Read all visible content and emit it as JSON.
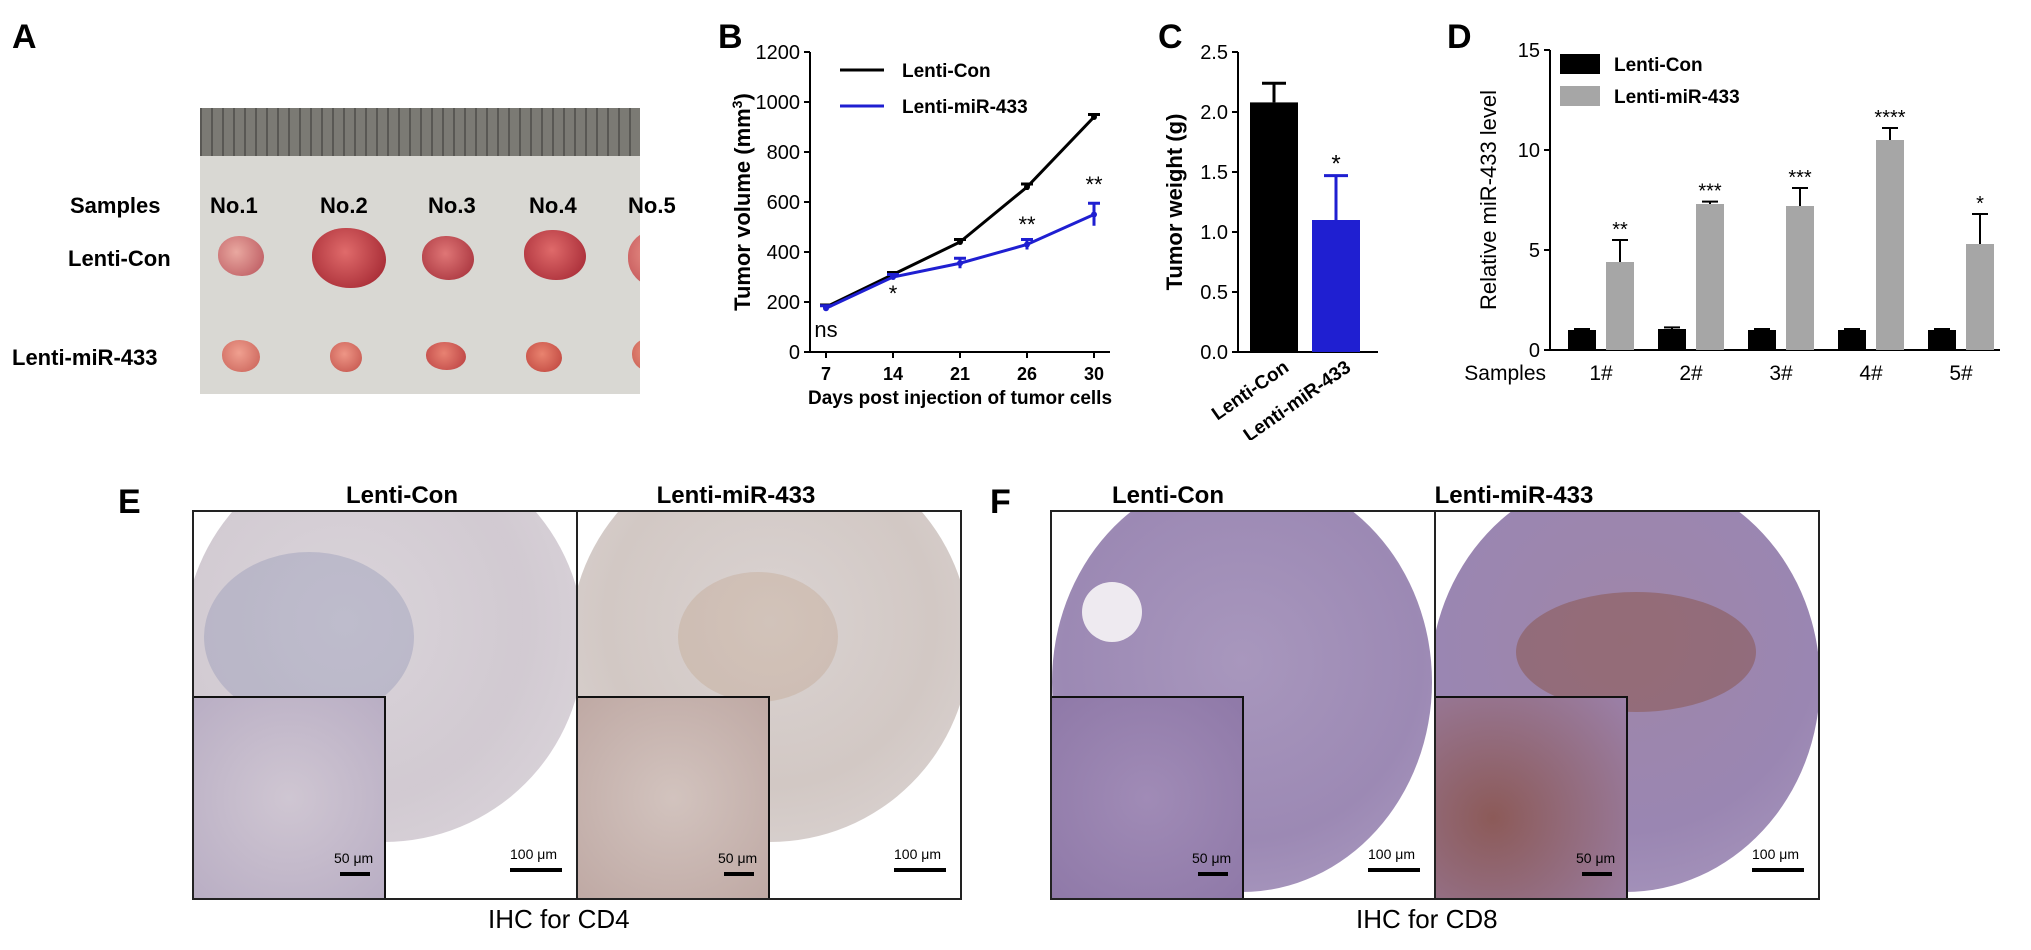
{
  "panels": {
    "A": "A",
    "B": "B",
    "C": "C",
    "D": "D",
    "E": "E",
    "F": "F"
  },
  "panel_a": {
    "samples_label": "Samples",
    "row_labels": [
      "Lenti-Con",
      "Lenti-miR-433"
    ],
    "sample_labels": [
      "No.1",
      "No.2",
      "No.3",
      "No.4",
      "No.5"
    ]
  },
  "chart_data": [
    {
      "panel": "B",
      "type": "line",
      "x": [
        7,
        14,
        21,
        26,
        30
      ],
      "xlabel": "Days post injection of tumor cells",
      "ylabel": "Tumor volume (mm",
      "ylabel_sup": "3",
      "ylabel_end": ")",
      "ylim": [
        0,
        1200
      ],
      "yticks": [
        0,
        200,
        400,
        600,
        800,
        1000,
        1200
      ],
      "legend": "top-left",
      "series": [
        {
          "name": "Lenti-Con",
          "color": "#000000",
          "values": [
            180,
            310,
            440,
            660,
            940
          ],
          "errors": [
            8,
            8,
            10,
            12,
            10
          ]
        },
        {
          "name": "Lenti-miR-433",
          "color": "#1f1fd1",
          "values": [
            175,
            300,
            355,
            430,
            550
          ],
          "errors": [
            10,
            10,
            20,
            20,
            45
          ]
        }
      ],
      "annotations": [
        {
          "x": 7,
          "y": 60,
          "text": "ns"
        },
        {
          "x": 14,
          "y": 205,
          "text": "*"
        },
        {
          "x": 26,
          "y": 480,
          "text": "**"
        },
        {
          "x": 30,
          "y": 640,
          "text": "**"
        }
      ]
    },
    {
      "panel": "C",
      "type": "bar",
      "categories": [
        "Lenti-Con",
        "Lenti-miR-433"
      ],
      "values": [
        2.08,
        1.1
      ],
      "errors": [
        0.16,
        0.37
      ],
      "colors": [
        "#000000",
        "#1f1fd1"
      ],
      "ylabel": "Tumor weight (g)",
      "ylim": [
        0,
        2.5
      ],
      "yticks": [
        0.0,
        0.5,
        1.0,
        1.5,
        2.0,
        2.5
      ],
      "annotations": [
        {
          "category": "Lenti-miR-433",
          "text": "*"
        }
      ]
    },
    {
      "panel": "D",
      "type": "bar",
      "x_prefix": "Samples",
      "categories": [
        "1#",
        "2#",
        "3#",
        "4#",
        "5#"
      ],
      "series": [
        {
          "name": "Lenti-Con",
          "color": "#000000",
          "values": [
            1.0,
            1.05,
            1.0,
            1.0,
            1.0
          ],
          "errors": [
            0.05,
            0.08,
            0.05,
            0.05,
            0.05
          ]
        },
        {
          "name": "Lenti-miR-433",
          "color": "#a6a6a6",
          "values": [
            4.4,
            7.3,
            7.2,
            10.5,
            5.3
          ],
          "errors": [
            1.1,
            0.12,
            0.9,
            0.6,
            1.5
          ]
        }
      ],
      "ylabel": "Relative miR-433 level",
      "ylim": [
        0,
        15
      ],
      "yticks": [
        0,
        5,
        10,
        15
      ],
      "legend": "top-left",
      "significance": [
        "**",
        "***",
        "***",
        "****",
        "*"
      ]
    }
  ],
  "panel_e": {
    "col_titles": [
      "Lenti-Con",
      "Lenti-miR-433"
    ],
    "scale_main": "100 μm",
    "scale_inset": "50 μm",
    "caption": "IHC for CD4"
  },
  "panel_f": {
    "col_titles": [
      "Lenti-Con",
      "Lenti-miR-433"
    ],
    "scale_main": "100 μm",
    "scale_inset": "50 μm",
    "caption": "IHC for CD8"
  },
  "colors": {
    "cd4_stain": "#c9bfc8",
    "cd8_stain": "#9c8ab8",
    "brown_marker": "#8a4a1e"
  }
}
